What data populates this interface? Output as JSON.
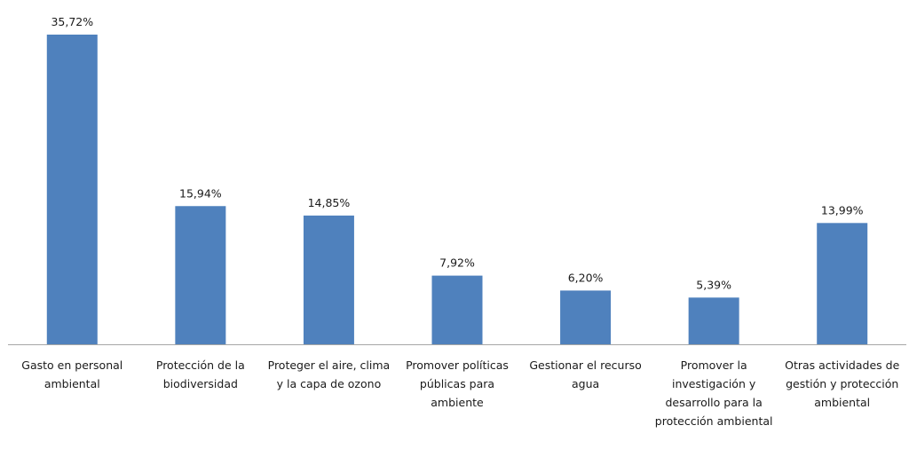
{
  "chart_data": {
    "type": "bar",
    "categories": [
      "Gasto en personal ambiental",
      "Protección de la biodiversidad",
      "Proteger el aire, clima y la capa de ozono",
      "Promover políticas públicas para ambiente",
      "Gestionar el recurso agua",
      "Promover la investigación y desarrollo para la protección ambiental",
      "Otras actividades de gestión y protección ambiental"
    ],
    "values": [
      35.72,
      15.94,
      14.85,
      7.92,
      6.2,
      5.39,
      13.99
    ],
    "value_labels": [
      "35,72%",
      "15,94%",
      "14,85%",
      "7,92%",
      "6,20%",
      "5,39%",
      "13,99%"
    ],
    "color": "#4f81bd"
  }
}
